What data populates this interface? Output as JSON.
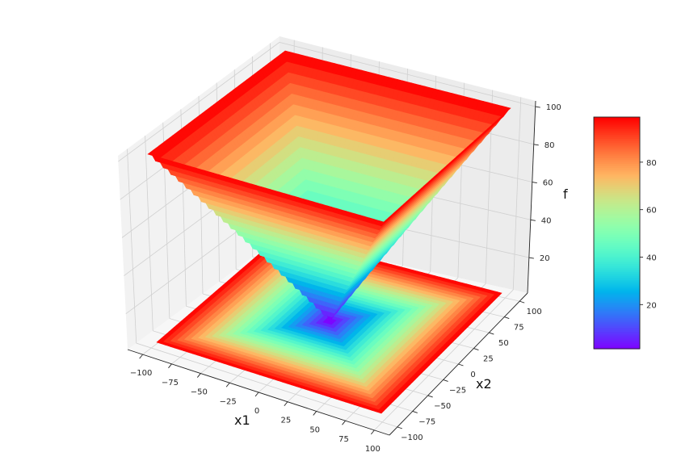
{
  "chart_data": {
    "type": "surface",
    "x1_range": [
      -100,
      100
    ],
    "x2_range": [
      -100,
      100
    ],
    "f": "max(|x1|,|x2|)",
    "floor_projection": true,
    "colormap": "rainbow",
    "xlabel": "x1",
    "ylabel": "x2",
    "zlabel": "f",
    "x1_ticks": [
      "−100",
      "−75",
      "−50",
      "−25",
      "0",
      "25",
      "50",
      "75",
      "100"
    ],
    "x1_tick_values": [
      -100,
      -75,
      -50,
      -25,
      0,
      25,
      50,
      75,
      100
    ],
    "x2_ticks": [
      "−100",
      "−75",
      "−50",
      "−25",
      "0",
      "25",
      "50",
      "75",
      "100"
    ],
    "x2_tick_values": [
      -100,
      -75,
      -50,
      -25,
      0,
      25,
      50,
      75,
      100
    ],
    "z_ticks": [
      "20",
      "40",
      "60",
      "80",
      "100"
    ],
    "z_tick_values": [
      20,
      40,
      60,
      80,
      100
    ],
    "zlim": [
      1.2,
      103
    ],
    "colorbar": {
      "ticks": [
        "20",
        "40",
        "60",
        "80"
      ],
      "tick_values": [
        20,
        40,
        60,
        80
      ],
      "range": [
        1.4,
        99
      ]
    },
    "grid": true
  }
}
